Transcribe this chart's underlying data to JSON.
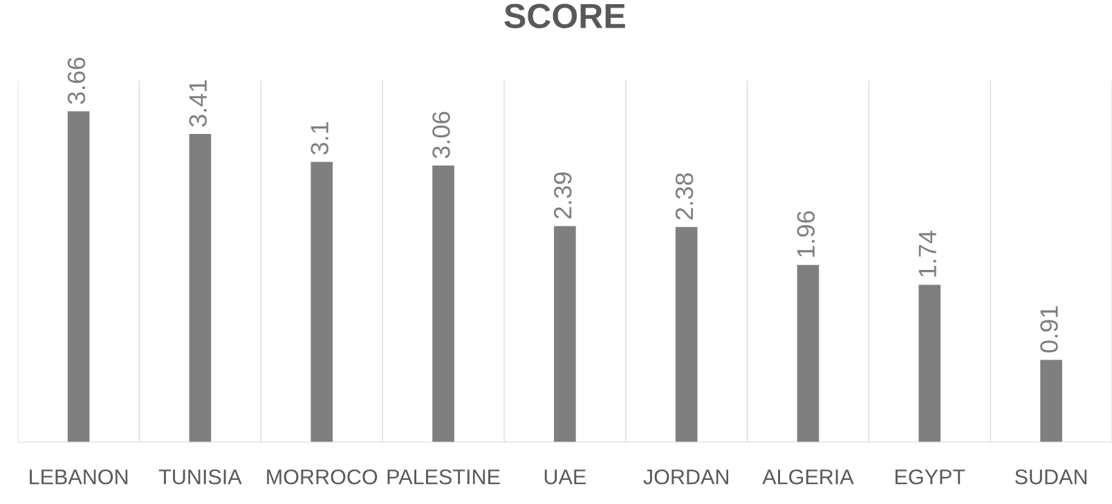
{
  "chart_data": {
    "type": "bar",
    "title": "SCORE",
    "categories": [
      "LEBANON",
      "TUNISIA",
      "MORROCO",
      "PALESTINE",
      "UAE",
      "JORDAN",
      "ALGERIA",
      "EGYPT",
      "SUDAN"
    ],
    "values": [
      3.66,
      3.41,
      3.1,
      3.06,
      2.39,
      2.38,
      1.96,
      1.74,
      0.91
    ],
    "color": "#7f7f7f",
    "ylim": [
      0,
      4
    ],
    "data_labels": true,
    "grid": "x",
    "tick_labels": "x"
  }
}
